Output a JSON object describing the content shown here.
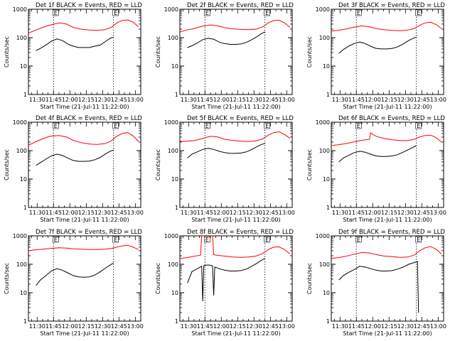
{
  "x_label": "Start Time (21-Jul-11 11:22:00)",
  "y_label": "Counts/sec",
  "x_ticks": [
    "11:30",
    "11:45",
    "12:00",
    "12:15",
    "12:30",
    "12:45",
    "13:00"
  ],
  "y_ticks": [
    "1",
    "10",
    "100",
    "1000"
  ],
  "marker_label": "E",
  "colors": {
    "events": "#000000",
    "lld": "#ff0000",
    "axes": "#000000"
  },
  "chart_data": [
    {
      "type": "line",
      "title": "Det 1f BLACK = Events, RED = LLD",
      "xlim": [
        "11:22",
        "13:05"
      ],
      "ylim": [
        1,
        1000
      ],
      "yscale": "log",
      "markers": [
        "11:45",
        "12:40"
      ],
      "series": [
        {
          "name": "Events",
          "x": [
            "11:29",
            "11:33",
            "11:38",
            "11:43",
            "11:48",
            "11:53",
            "11:58",
            "12:03",
            "12:08",
            "12:13",
            "12:18",
            "12:23",
            "12:28",
            "12:33",
            "12:37",
            "12:40"
          ],
          "y": [
            35,
            42,
            55,
            75,
            90,
            80,
            60,
            50,
            45,
            45,
            45,
            50,
            55,
            75,
            95,
            105
          ]
        },
        {
          "name": "LLD",
          "x": [
            "11:22",
            "11:28",
            "11:35",
            "11:42",
            "11:50",
            "11:57",
            "12:03",
            "12:10",
            "12:18",
            "12:25",
            "12:32",
            "12:38",
            "12:43",
            "12:48",
            "12:53",
            "12:58",
            "13:03"
          ],
          "y": [
            145,
            180,
            230,
            280,
            330,
            300,
            230,
            200,
            185,
            180,
            190,
            230,
            330,
            400,
            420,
            350,
            240
          ]
        }
      ]
    },
    {
      "type": "line",
      "title": "Det 2f BLACK = Events, RED = LLD",
      "xlim": [
        "11:22",
        "13:05"
      ],
      "ylim": [
        1,
        1000
      ],
      "yscale": "log",
      "markers": [
        "11:45",
        "12:40"
      ],
      "series": [
        {
          "name": "Events",
          "x": [
            "11:29",
            "11:33",
            "11:38",
            "11:43",
            "11:48",
            "11:53",
            "11:58",
            "12:03",
            "12:08",
            "12:13",
            "12:18",
            "12:23",
            "12:28",
            "12:33",
            "12:37",
            "12:40"
          ],
          "y": [
            45,
            52,
            65,
            85,
            95,
            88,
            70,
            62,
            58,
            58,
            60,
            68,
            85,
            110,
            140,
            160
          ]
        },
        {
          "name": "LLD",
          "x": [
            "11:22",
            "11:28",
            "11:35",
            "11:42",
            "11:50",
            "11:57",
            "12:03",
            "12:10",
            "12:18",
            "12:25",
            "12:32",
            "12:38",
            "12:43",
            "12:48",
            "12:53",
            "12:58",
            "13:03"
          ],
          "y": [
            160,
            185,
            210,
            250,
            280,
            260,
            225,
            205,
            195,
            190,
            200,
            240,
            330,
            400,
            410,
            330,
            230
          ]
        }
      ]
    },
    {
      "type": "line",
      "title": "Det 3f BLACK = Events, RED = LLD",
      "xlim": [
        "11:22",
        "13:05"
      ],
      "ylim": [
        1,
        1000
      ],
      "yscale": "log",
      "markers": [
        "11:45",
        "12:40"
      ],
      "series": [
        {
          "name": "Events",
          "x": [
            "11:29",
            "11:33",
            "11:38",
            "11:43",
            "11:48",
            "11:53",
            "11:58",
            "12:03",
            "12:08",
            "12:13",
            "12:18",
            "12:23",
            "12:28",
            "12:33",
            "12:37",
            "12:40"
          ],
          "y": [
            28,
            38,
            50,
            62,
            70,
            62,
            50,
            42,
            40,
            40,
            42,
            48,
            60,
            80,
            95,
            105
          ]
        },
        {
          "name": "LLD",
          "x": [
            "11:22",
            "11:28",
            "11:35",
            "11:42",
            "11:50",
            "11:57",
            "12:03",
            "12:10",
            "12:18",
            "12:25",
            "12:32",
            "12:38",
            "12:43",
            "12:48",
            "12:53",
            "12:58",
            "13:03"
          ],
          "y": [
            170,
            180,
            200,
            230,
            260,
            240,
            210,
            190,
            180,
            175,
            185,
            210,
            270,
            330,
            350,
            290,
            210
          ]
        }
      ]
    },
    {
      "type": "line",
      "title": "Det 4f BLACK = Events, RED = LLD",
      "xlim": [
        "11:22",
        "13:05"
      ],
      "ylim": [
        1,
        1000
      ],
      "yscale": "log",
      "markers": [
        "11:45",
        "12:40"
      ],
      "series": [
        {
          "name": "Events",
          "x": [
            "11:29",
            "11:33",
            "11:38",
            "11:43",
            "11:48",
            "11:53",
            "11:58",
            "12:03",
            "12:08",
            "12:13",
            "12:18",
            "12:23",
            "12:28",
            "12:33",
            "12:37",
            "12:40"
          ],
          "y": [
            30,
            38,
            50,
            65,
            75,
            68,
            55,
            45,
            42,
            42,
            43,
            48,
            58,
            78,
            95,
            105
          ]
        },
        {
          "name": "LLD",
          "x": [
            "11:22",
            "11:28",
            "11:35",
            "11:42",
            "11:50",
            "11:57",
            "12:03",
            "12:10",
            "12:18",
            "12:25",
            "12:32",
            "12:38",
            "12:43",
            "12:48",
            "12:53",
            "12:58",
            "13:03"
          ],
          "y": [
            155,
            200,
            260,
            320,
            340,
            300,
            230,
            190,
            170,
            165,
            175,
            220,
            320,
            400,
            430,
            330,
            210
          ]
        }
      ]
    },
    {
      "type": "line",
      "title": "Det 5f BLACK = Events, RED = LLD",
      "xlim": [
        "11:22",
        "13:05"
      ],
      "ylim": [
        1,
        1000
      ],
      "yscale": "log",
      "markers": [
        "11:45",
        "12:40"
      ],
      "series": [
        {
          "name": "Events",
          "x": [
            "11:29",
            "11:33",
            "11:38",
            "11:43",
            "11:48",
            "11:53",
            "11:58",
            "12:03",
            "12:08",
            "12:13",
            "12:18",
            "12:23",
            "12:28",
            "12:33",
            "12:37",
            "12:40"
          ],
          "y": [
            55,
            75,
            90,
            110,
            120,
            110,
            95,
            85,
            80,
            80,
            82,
            90,
            110,
            140,
            165,
            180
          ]
        },
        {
          "name": "LLD",
          "x": [
            "11:22",
            "11:28",
            "11:35",
            "11:42",
            "11:50",
            "11:57",
            "12:03",
            "12:10",
            "12:18",
            "12:25",
            "12:32",
            "12:38",
            "12:43",
            "12:48",
            "12:53",
            "12:58",
            "13:03"
          ],
          "y": [
            210,
            215,
            225,
            260,
            320,
            300,
            250,
            230,
            215,
            210,
            220,
            260,
            350,
            430,
            460,
            370,
            270
          ]
        }
      ]
    },
    {
      "type": "line",
      "title": "Det 6f BLACK = Events, RED = LLD",
      "xlim": [
        "11:22",
        "13:05"
      ],
      "ylim": [
        1,
        1000
      ],
      "yscale": "log",
      "markers": [
        "11:45",
        "12:40"
      ],
      "series": [
        {
          "name": "Events",
          "x": [
            "11:29",
            "11:33",
            "11:38",
            "11:43",
            "11:48",
            "11:53",
            "11:58",
            "12:03",
            "12:08",
            "12:13",
            "12:18",
            "12:23",
            "12:28",
            "12:33",
            "12:37",
            "12:40"
          ],
          "y": [
            40,
            55,
            68,
            85,
            95,
            88,
            75,
            65,
            62,
            62,
            65,
            72,
            88,
            110,
            130,
            150
          ]
        },
        {
          "name": "LLD",
          "x": [
            "11:22",
            "11:28",
            "11:35",
            "11:42",
            "11:50",
            "11:57",
            "11:58",
            "12:03",
            "12:10",
            "12:18",
            "12:25",
            "12:32",
            "12:38",
            "12:43",
            "12:48",
            "12:53",
            "12:58",
            "13:03"
          ],
          "y": [
            150,
            160,
            175,
            200,
            230,
            250,
            420,
            320,
            270,
            240,
            225,
            225,
            250,
            300,
            340,
            350,
            290,
            200
          ]
        }
      ]
    },
    {
      "type": "line",
      "title": "Det 7f BLACK = Events, RED = LLD",
      "xlim": [
        "11:22",
        "13:05"
      ],
      "ylim": [
        1,
        1000
      ],
      "yscale": "log",
      "markers": [
        "11:45",
        "12:40"
      ],
      "series": [
        {
          "name": "Events",
          "x": [
            "11:29",
            "11:33",
            "11:38",
            "11:43",
            "11:48",
            "11:53",
            "11:58",
            "12:03",
            "12:08",
            "12:13",
            "12:18",
            "12:23",
            "12:28",
            "12:33",
            "12:37",
            "12:40"
          ],
          "y": [
            18,
            28,
            40,
            58,
            70,
            62,
            50,
            40,
            36,
            35,
            36,
            42,
            55,
            75,
            95,
            110
          ]
        },
        {
          "name": "LLD",
          "x": [
            "11:22",
            "11:28",
            "11:35",
            "11:42",
            "11:50",
            "11:57",
            "12:03",
            "12:10",
            "12:18",
            "12:25",
            "12:32",
            "12:38",
            "12:43",
            "12:48",
            "12:53",
            "12:58",
            "13:03"
          ],
          "y": [
            300,
            320,
            340,
            360,
            380,
            370,
            350,
            340,
            330,
            330,
            340,
            360,
            400,
            440,
            470,
            400,
            330
          ]
        }
      ]
    },
    {
      "type": "line",
      "title": "Det 8f BLACK = Events, RED = LLD",
      "xlim": [
        "11:22",
        "13:05"
      ],
      "ylim": [
        1,
        1000
      ],
      "yscale": "log",
      "markers": [
        "11:45",
        "12:40"
      ],
      "series": [
        {
          "name": "Events",
          "x": [
            "11:29",
            "11:33",
            "11:38",
            "11:42",
            "11:43",
            "11:44",
            "11:48",
            "11:52",
            "11:53",
            "11:54",
            "11:55",
            "11:58",
            "12:03",
            "12:08",
            "12:13",
            "12:18",
            "12:23",
            "12:28",
            "12:33",
            "12:37",
            "12:40"
          ],
          "y": [
            22,
            55,
            70,
            85,
            5,
            90,
            95,
            88,
            8,
            80,
            78,
            70,
            62,
            58,
            58,
            60,
            68,
            85,
            110,
            140,
            160
          ]
        },
        {
          "name": "LLD",
          "x": [
            "11:22",
            "11:28",
            "11:35",
            "11:41",
            "11:42",
            "11:44",
            "11:46",
            "11:50",
            "11:52",
            "11:53",
            "11:55",
            "12:00",
            "12:05",
            "12:10",
            "12:18",
            "12:25",
            "12:32",
            "12:38",
            "12:43",
            "12:48",
            "12:53",
            "12:58",
            "13:03"
          ],
          "y": [
            160,
            170,
            190,
            210,
            1000,
            1000,
            1000,
            1000,
            1000,
            220,
            210,
            200,
            190,
            180,
            175,
            180,
            195,
            240,
            330,
            400,
            410,
            330,
            230
          ]
        }
      ]
    },
    {
      "type": "line",
      "title": "Det 9f BLACK = Events, RED = LLD",
      "xlim": [
        "11:22",
        "13:05"
      ],
      "ylim": [
        1,
        1000
      ],
      "yscale": "log",
      "markers": [
        "11:45",
        "12:40"
      ],
      "series": [
        {
          "name": "Events",
          "x": [
            "11:29",
            "11:33",
            "11:38",
            "11:43",
            "11:48",
            "11:53",
            "11:58",
            "12:03",
            "12:08",
            "12:13",
            "12:18",
            "12:23",
            "12:28",
            "12:33",
            "12:38",
            "12:41",
            "12:42"
          ],
          "y": [
            28,
            40,
            52,
            65,
            85,
            80,
            70,
            62,
            58,
            58,
            60,
            68,
            80,
            100,
            115,
            125,
            2
          ]
        },
        {
          "name": "LLD",
          "x": [
            "11:22",
            "11:28",
            "11:35",
            "11:42",
            "11:50",
            "11:57",
            "12:03",
            "12:10",
            "12:18",
            "12:25",
            "12:32",
            "12:38",
            "12:43",
            "12:48",
            "12:53",
            "12:58",
            "13:03"
          ],
          "y": [
            160,
            170,
            190,
            220,
            260,
            250,
            220,
            195,
            185,
            175,
            180,
            210,
            300,
            380,
            420,
            340,
            230
          ]
        }
      ]
    }
  ]
}
